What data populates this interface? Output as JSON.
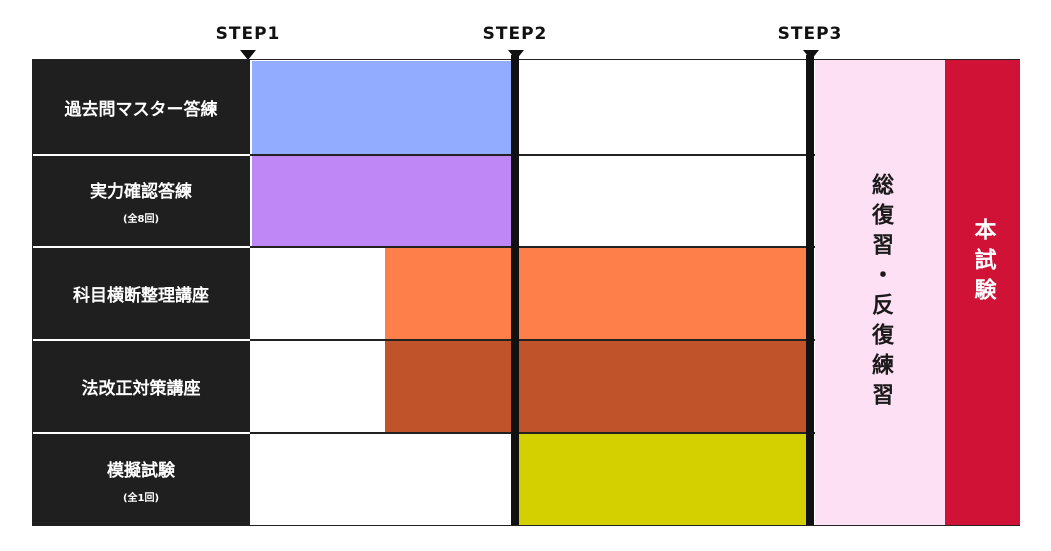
{
  "steps": [
    "STEP1",
    "STEP2",
    "STEP3"
  ],
  "rows": [
    {
      "label": "過去問マスター答練"
    },
    {
      "label": "実力確認答練",
      "note": "(全8回)"
    },
    {
      "label": "科目横断整理講座"
    },
    {
      "label": "法改正対策講座"
    },
    {
      "label": "模擬試験",
      "note": "(全1回)"
    }
  ],
  "review": "総復習・反復練習",
  "exam": "本試験"
}
